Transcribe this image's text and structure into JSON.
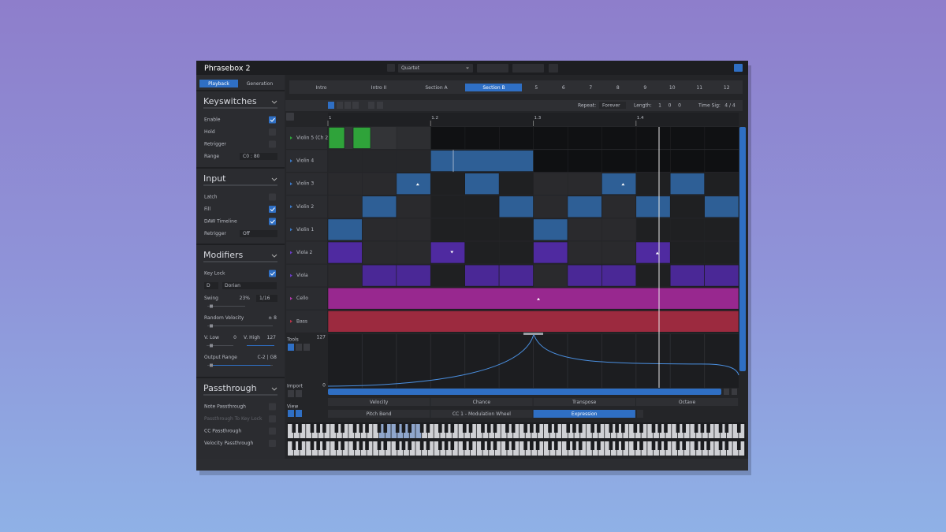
{
  "header": {
    "title": "Phrasebox 2",
    "preset": "Quartet"
  },
  "mode_tabs": {
    "items": [
      "Playback",
      "Generation"
    ],
    "active": 0
  },
  "panels": [
    {
      "title": "Keyswitches",
      "rows": [
        {
          "label": "Enable",
          "checked": true
        },
        {
          "label": "Hold",
          "checked": false
        },
        {
          "label": "Retrigger",
          "checked": false
        },
        {
          "label": "Range",
          "dropdown": "C0 : 80"
        }
      ]
    },
    {
      "title": "Input",
      "rows": [
        {
          "label": "Latch",
          "checked": false
        },
        {
          "label": "Fill",
          "checked": true
        },
        {
          "label": "DAW Timeline",
          "checked": true
        },
        {
          "label": "Retrigger",
          "dropdown": "Off"
        }
      ]
    },
    {
      "title": "Modifiers",
      "rows": [
        {
          "label": "Key Lock",
          "checked": true
        },
        {
          "dropdowns": [
            "D",
            "Dorian"
          ]
        },
        {
          "label": "Swing",
          "value": "23%",
          "dropdown": "1/16",
          "slider": true
        },
        {
          "label": "Random Velocity",
          "value": "± 8",
          "slider": true
        },
        {
          "label": "V. Low",
          "value": "0",
          "label2": "V. High",
          "value2": "127",
          "slider": true
        },
        {
          "label": "Output Range",
          "value": "C-2 | G8",
          "slider": true
        }
      ]
    },
    {
      "title": "Passthrough",
      "rows": [
        {
          "label": "Note Passthrough",
          "checked": false
        },
        {
          "label": "Passthrough To Key Lock",
          "checked": false,
          "disabled": true
        },
        {
          "label": "CC Passthrough",
          "checked": false
        },
        {
          "label": "Velocity Passthrough",
          "checked": false
        }
      ]
    }
  ],
  "sections": {
    "items": [
      "Intro",
      "Intro II",
      "Section A",
      "Section B",
      "5",
      "6",
      "7",
      "8",
      "9",
      "10",
      "11",
      "12"
    ],
    "active": 3
  },
  "toolbar": {
    "repeat_label": "Repeat:",
    "repeat": "Forever",
    "length_label": "Length:",
    "length": [
      "1",
      "0",
      "0"
    ],
    "timesig_label": "Time Sig:",
    "timesig": "4 / 4"
  },
  "ruler": [
    "1",
    "1.2",
    "1.3",
    "1.4"
  ],
  "tracks": [
    "Violin 5 (Ch 2)",
    "Violin 4",
    "Violin 3",
    "Violin 2",
    "Violin 1",
    "Viola 2",
    "Viola",
    "Cello",
    "Bass"
  ],
  "automation": {
    "tools_label": "Tools",
    "max": "127",
    "min": "0",
    "import_label": "Import",
    "view_label": "View",
    "lanes_row1": [
      "Velocity",
      "Chance",
      "Transpose",
      "Octave"
    ],
    "lanes_row2": [
      "Pitch Bend",
      "CC 1 - Modulation Wheel",
      "Expression"
    ],
    "active_lane": 2
  }
}
